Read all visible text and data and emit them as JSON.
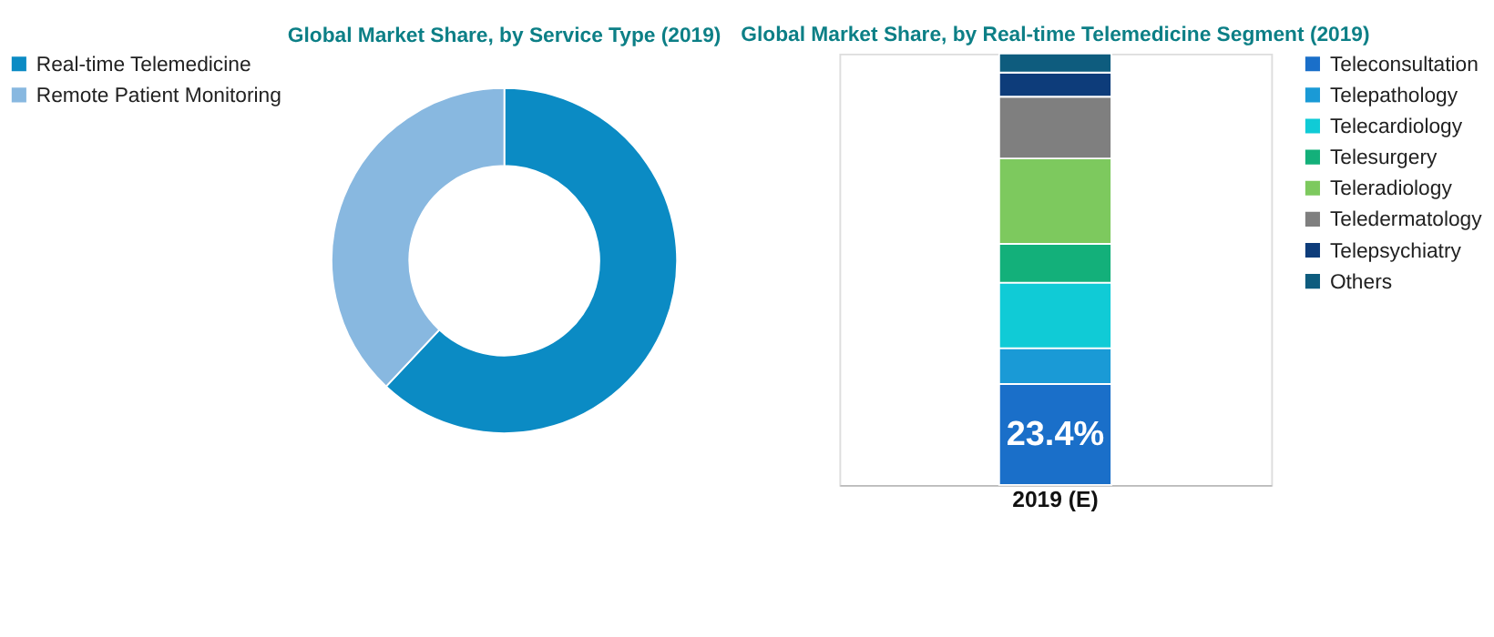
{
  "chart_data": [
    {
      "type": "donut",
      "title": "Global Market Share, by Service Type (2019)",
      "categories": [
        "Real-time Telemedicine",
        "Remote Patient Monitoring"
      ],
      "values": [
        62,
        38
      ],
      "colors": [
        "#0b8bc4",
        "#88b8e0"
      ],
      "legend": "left"
    },
    {
      "type": "bar",
      "title": "Global Market Share, by Real-time Telemedicine Segment (2019)",
      "categories": [
        "2019 (E)"
      ],
      "stacked": true,
      "ylim": [
        0,
        100
      ],
      "tick_labels": "x",
      "legend": "right",
      "series": [
        {
          "name": "Teleconsultation",
          "color": "#1a6fc9",
          "values": [
            23.4
          ],
          "value_labels": [
            "23.4%"
          ]
        },
        {
          "name": "Telepathology",
          "color": "#1a9ad6",
          "values": [
            8.3
          ]
        },
        {
          "name": "Telecardiology",
          "color": "#10cbd6",
          "values": [
            15.2
          ]
        },
        {
          "name": "Telesurgery",
          "color": "#13b07a",
          "values": [
            9.0
          ]
        },
        {
          "name": "Teleradiology",
          "color": "#7dc95e",
          "values": [
            19.8
          ]
        },
        {
          "name": "Teledermatology",
          "color": "#7f7f7f",
          "values": [
            14.3
          ]
        },
        {
          "name": "Telepsychiatry",
          "color": "#0d3c7a",
          "values": [
            5.6
          ]
        },
        {
          "name": "Others",
          "color": "#0e5c7e",
          "values": [
            4.4
          ]
        }
      ]
    }
  ]
}
